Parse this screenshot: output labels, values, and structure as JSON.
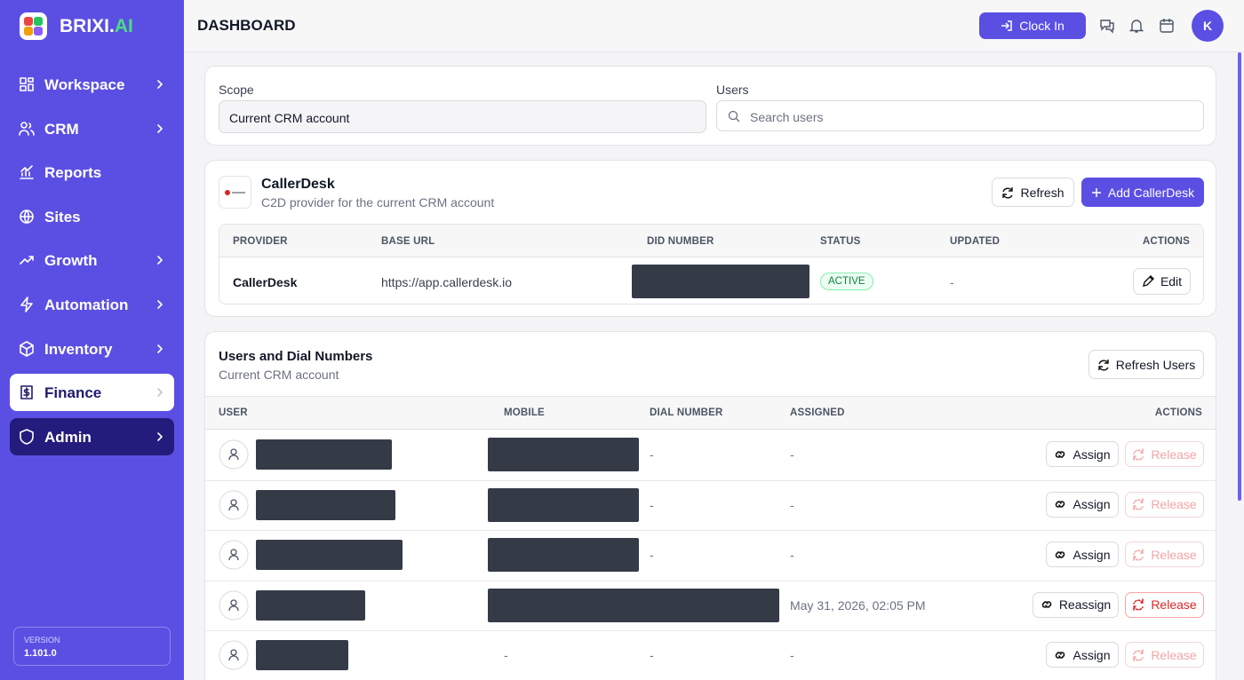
{
  "brand": {
    "name": "BRIXI.",
    "suffix": "AI"
  },
  "nav": [
    {
      "label": "Workspace",
      "submenu": true
    },
    {
      "label": "CRM",
      "submenu": true
    },
    {
      "label": "Reports",
      "submenu": false
    },
    {
      "label": "Sites",
      "submenu": false
    },
    {
      "label": "Growth",
      "submenu": true
    },
    {
      "label": "Automation",
      "submenu": true
    },
    {
      "label": "Inventory",
      "submenu": true
    },
    {
      "label": "Finance",
      "submenu": true,
      "state": "selected"
    },
    {
      "label": "Admin",
      "submenu": true,
      "state": "active"
    }
  ],
  "version": {
    "label": "VERSION",
    "value": "1.101.0"
  },
  "header": {
    "title": "DASHBOARD",
    "clock_in": "Clock In",
    "avatar": "K"
  },
  "filters": {
    "scope_label": "Scope",
    "scope_value": "Current CRM account",
    "users_label": "Users",
    "users_placeholder": "Search users"
  },
  "provider": {
    "name": "CallerDesk",
    "subtitle": "C2D provider for the current CRM account",
    "refresh": "Refresh",
    "add": "Add CallerDesk",
    "columns": [
      "PROVIDER",
      "BASE URL",
      "DID NUMBER",
      "STATUS",
      "UPDATED",
      "ACTIONS"
    ],
    "row": {
      "provider": "CallerDesk",
      "base_url": "https://app.callerdesk.io",
      "status": "ACTIVE",
      "updated": "-",
      "action": "Edit"
    }
  },
  "users": {
    "title": "Users and Dial Numbers",
    "subtitle": "Current CRM account",
    "refresh": "Refresh Users",
    "columns": [
      "USER",
      "MOBILE",
      "DIAL NUMBER",
      "ASSIGNED",
      "ACTIONS"
    ],
    "rows": [
      {
        "dial_number": "-",
        "assigned": "-",
        "action": "Assign",
        "release": "Release",
        "release_enabled": false
      },
      {
        "dial_number": "-",
        "assigned": "-",
        "action": "Assign",
        "release": "Release",
        "release_enabled": false
      },
      {
        "dial_number": "-",
        "assigned": "-",
        "action": "Assign",
        "release": "Release",
        "release_enabled": false
      },
      {
        "assigned": "May 31, 2026, 02:05 PM",
        "action": "Reassign",
        "release": "Release",
        "release_enabled": true
      },
      {
        "mobile": "-",
        "dial_number": "-",
        "assigned": "-",
        "action": "Assign",
        "release": "Release",
        "release_enabled": false
      }
    ]
  }
}
